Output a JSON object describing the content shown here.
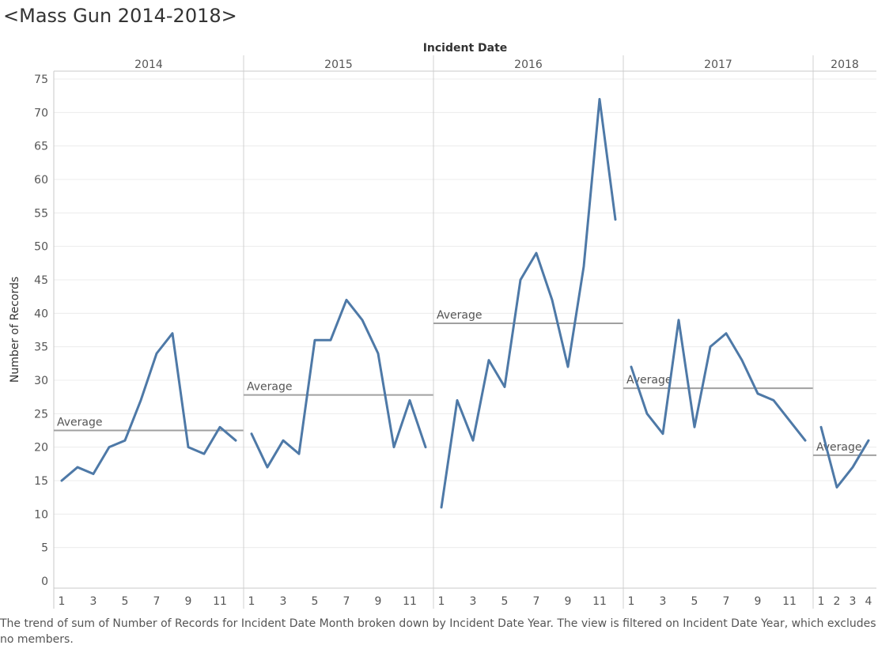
{
  "page": {
    "title": "<Mass Gun 2014-2018>"
  },
  "caption": "The trend of sum of Number of Records for Incident Date Month broken down by Incident Date Year. The view is filtered on Incident Date Year, which excludes no members.",
  "chart_data": {
    "type": "line",
    "xlabel": "Incident Date",
    "ylabel": "Number of Records",
    "ylim": [
      0,
      75
    ],
    "yticks": [
      0,
      5,
      10,
      15,
      20,
      25,
      30,
      35,
      40,
      45,
      50,
      55,
      60,
      65,
      70,
      75
    ],
    "reference_line_label": "Average",
    "line_color": "#4e79a7",
    "average_line_color": "#a0a0a0",
    "panels": [
      {
        "year": "2014",
        "months": [
          1,
          2,
          3,
          4,
          5,
          6,
          7,
          8,
          9,
          10,
          11,
          12
        ],
        "values": [
          15,
          17,
          16,
          20,
          21,
          27,
          34,
          37,
          20,
          19,
          23,
          21
        ],
        "average": 22.5,
        "tick_labels": [
          "1",
          "3",
          "5",
          "7",
          "9",
          "11"
        ]
      },
      {
        "year": "2015",
        "months": [
          1,
          2,
          3,
          4,
          5,
          6,
          7,
          8,
          9,
          10,
          11,
          12
        ],
        "values": [
          22,
          17,
          21,
          19,
          36,
          36,
          42,
          39,
          34,
          20,
          27,
          20
        ],
        "average": 27.8,
        "tick_labels": [
          "1",
          "3",
          "5",
          "7",
          "9",
          "11"
        ]
      },
      {
        "year": "2016",
        "months": [
          1,
          2,
          3,
          4,
          5,
          6,
          7,
          8,
          9,
          10,
          11,
          12
        ],
        "values": [
          11,
          27,
          21,
          33,
          29,
          45,
          49,
          42,
          32,
          47,
          72,
          54
        ],
        "average": 38.5,
        "tick_labels": [
          "1",
          "3",
          "5",
          "7",
          "9",
          "11"
        ]
      },
      {
        "year": "2017",
        "months": [
          1,
          2,
          3,
          4,
          5,
          6,
          7,
          8,
          9,
          10,
          11,
          12
        ],
        "values": [
          32,
          25,
          22,
          39,
          23,
          35,
          37,
          33,
          28,
          27,
          24,
          21
        ],
        "average": 28.8,
        "tick_labels": [
          "1",
          "3",
          "5",
          "7",
          "9",
          "11"
        ]
      },
      {
        "year": "2018",
        "months": [
          1,
          2,
          3,
          4
        ],
        "values": [
          23,
          14,
          17,
          21
        ],
        "average": 18.8,
        "tick_labels": [
          "1",
          "2",
          "3",
          "4"
        ]
      }
    ]
  }
}
